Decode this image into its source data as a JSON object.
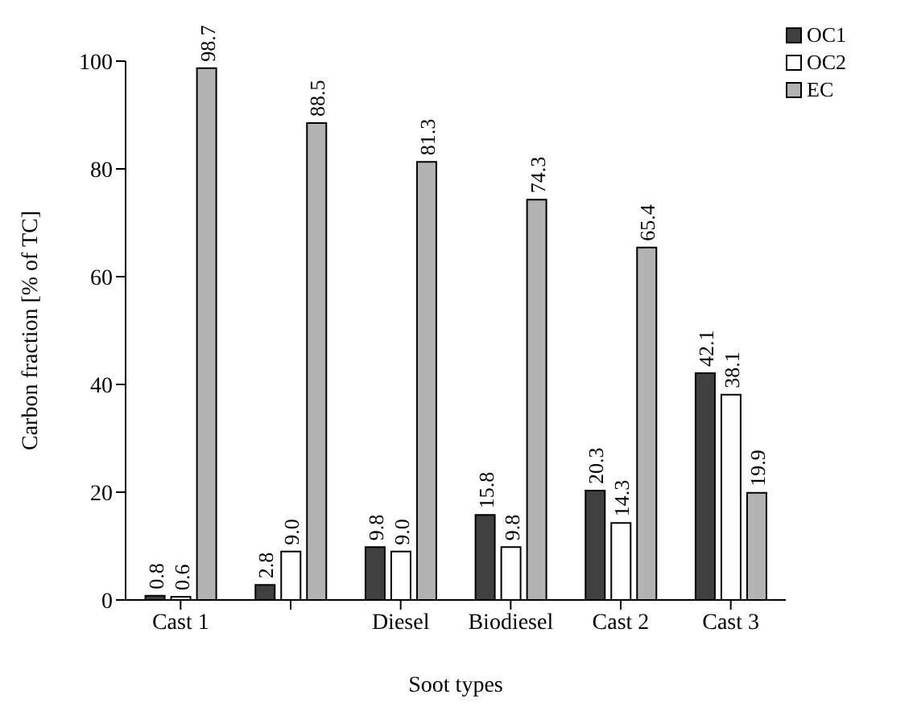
{
  "chart_data": {
    "type": "bar",
    "xlabel": "Soot types",
    "ylabel": "Carbon fraction [% of TC]",
    "categories": [
      "Cast 1",
      null,
      "Diesel",
      "Biodiesel",
      "Cast 2",
      "Cast 3"
    ],
    "series": [
      {
        "name": "OC1",
        "color": "#404040",
        "values": [
          0.8,
          2.8,
          9.8,
          15.8,
          20.3,
          42.1
        ]
      },
      {
        "name": "OC2",
        "color": "#ffffff",
        "values": [
          0.6,
          9.0,
          9.0,
          9.8,
          14.3,
          38.1
        ]
      },
      {
        "name": "EC",
        "color": "#b3b3b3",
        "values": [
          98.7,
          88.5,
          81.3,
          74.3,
          65.4,
          19.9
        ]
      }
    ],
    "value_labels": [
      [
        "0.8",
        "2.8",
        "9.8",
        "15.8",
        "20.3",
        "42.1"
      ],
      [
        "0.6",
        "9.0",
        "9.0",
        "9.8",
        "14.3",
        "38.1"
      ],
      [
        "98.7",
        "88.5",
        "81.3",
        "74.3",
        "65.4",
        "19.9"
      ]
    ],
    "ylim": [
      0,
      100
    ],
    "yticks": [
      0,
      20,
      40,
      60,
      80,
      100
    ],
    "grid": false,
    "legend": "top right"
  }
}
